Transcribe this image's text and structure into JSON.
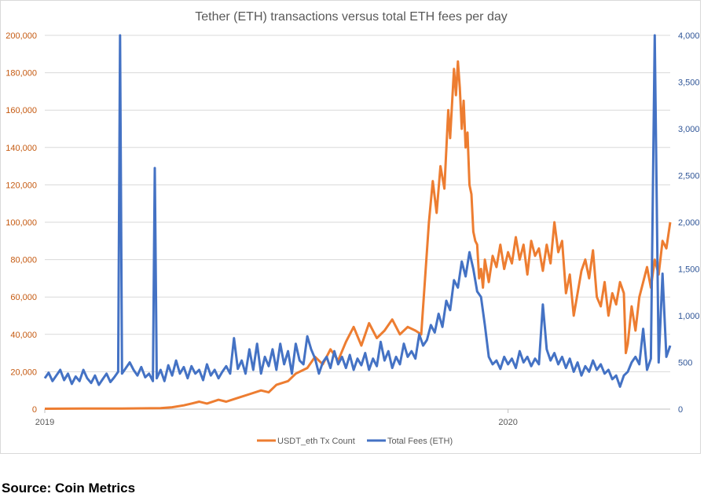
{
  "chart_data": {
    "type": "line",
    "title": "Tether (ETH) transactions versus total ETH fees per day",
    "left_axis": {
      "min": 0,
      "max": 200000,
      "ticks": [
        0,
        20000,
        40000,
        60000,
        80000,
        100000,
        120000,
        140000,
        160000,
        180000,
        200000
      ],
      "tick_labels": [
        "0",
        "20,000",
        "40,000",
        "60,000",
        "80,000",
        "100,000",
        "120,000",
        "140,000",
        "160,000",
        "180,000",
        "200,000"
      ]
    },
    "right_axis": {
      "min": 0,
      "max": 4000,
      "ticks": [
        0,
        500,
        1000,
        1500,
        2000,
        2500,
        3000,
        3500,
        4000
      ],
      "tick_labels": [
        "0",
        "500",
        "1,000",
        "1,500",
        "2,000",
        "2,500",
        "3,000",
        "3,500",
        "4,000"
      ]
    },
    "x_axis": {
      "range_months": [
        0,
        16.2
      ],
      "ticks": [
        {
          "month": 0,
          "label": "2019"
        },
        {
          "month": 12,
          "label": "2020"
        }
      ]
    },
    "gridlines": true,
    "legend_position": "bottom",
    "series": [
      {
        "name": "USDT_eth Tx Count",
        "axis": "left",
        "color": "#ed7d31",
        "points": [
          [
            0,
            200
          ],
          [
            0.5,
            250
          ],
          [
            1,
            280
          ],
          [
            1.5,
            300
          ],
          [
            2,
            330
          ],
          [
            2.5,
            400
          ],
          [
            3,
            500
          ],
          [
            3.3,
            1000
          ],
          [
            3.6,
            2000
          ],
          [
            3.8,
            3000
          ],
          [
            4,
            4000
          ],
          [
            4.2,
            3000
          ],
          [
            4.5,
            5000
          ],
          [
            4.7,
            4000
          ],
          [
            5,
            6000
          ],
          [
            5.3,
            8000
          ],
          [
            5.6,
            10000
          ],
          [
            5.8,
            9000
          ],
          [
            6,
            13000
          ],
          [
            6.3,
            15000
          ],
          [
            6.5,
            19000
          ],
          [
            6.8,
            22000
          ],
          [
            7,
            28000
          ],
          [
            7.2,
            24000
          ],
          [
            7.4,
            32000
          ],
          [
            7.6,
            26000
          ],
          [
            7.8,
            36000
          ],
          [
            8,
            44000
          ],
          [
            8.2,
            34000
          ],
          [
            8.4,
            46000
          ],
          [
            8.6,
            38000
          ],
          [
            8.8,
            42000
          ],
          [
            9,
            48000
          ],
          [
            9.2,
            40000
          ],
          [
            9.4,
            44000
          ],
          [
            9.6,
            42000
          ],
          [
            9.75,
            40000
          ],
          [
            9.85,
            70000
          ],
          [
            9.95,
            100000
          ],
          [
            10.05,
            122000
          ],
          [
            10.15,
            105000
          ],
          [
            10.25,
            130000
          ],
          [
            10.35,
            118000
          ],
          [
            10.45,
            160000
          ],
          [
            10.5,
            145000
          ],
          [
            10.6,
            182000
          ],
          [
            10.65,
            168000
          ],
          [
            10.7,
            186000
          ],
          [
            10.75,
            172000
          ],
          [
            10.8,
            150000
          ],
          [
            10.85,
            165000
          ],
          [
            10.9,
            140000
          ],
          [
            10.95,
            148000
          ],
          [
            11.0,
            120000
          ],
          [
            11.05,
            115000
          ],
          [
            11.1,
            95000
          ],
          [
            11.15,
            90000
          ],
          [
            11.2,
            88000
          ],
          [
            11.25,
            70000
          ],
          [
            11.3,
            75000
          ],
          [
            11.35,
            65000
          ],
          [
            11.4,
            80000
          ],
          [
            11.5,
            68000
          ],
          [
            11.6,
            82000
          ],
          [
            11.7,
            76000
          ],
          [
            11.8,
            88000
          ],
          [
            11.9,
            75000
          ],
          [
            12.0,
            84000
          ],
          [
            12.1,
            78000
          ],
          [
            12.2,
            92000
          ],
          [
            12.3,
            80000
          ],
          [
            12.4,
            88000
          ],
          [
            12.5,
            72000
          ],
          [
            12.6,
            90000
          ],
          [
            12.7,
            82000
          ],
          [
            12.8,
            86000
          ],
          [
            12.9,
            74000
          ],
          [
            13.0,
            88000
          ],
          [
            13.1,
            78000
          ],
          [
            13.2,
            100000
          ],
          [
            13.3,
            84000
          ],
          [
            13.4,
            90000
          ],
          [
            13.5,
            62000
          ],
          [
            13.6,
            72000
          ],
          [
            13.7,
            50000
          ],
          [
            13.8,
            62000
          ],
          [
            13.9,
            74000
          ],
          [
            14.0,
            80000
          ],
          [
            14.1,
            70000
          ],
          [
            14.2,
            85000
          ],
          [
            14.3,
            60000
          ],
          [
            14.4,
            55000
          ],
          [
            14.5,
            68000
          ],
          [
            14.6,
            50000
          ],
          [
            14.7,
            62000
          ],
          [
            14.8,
            56000
          ],
          [
            14.9,
            68000
          ],
          [
            15.0,
            62000
          ],
          [
            15.05,
            30000
          ],
          [
            15.1,
            35000
          ],
          [
            15.2,
            55000
          ],
          [
            15.3,
            42000
          ],
          [
            15.4,
            60000
          ],
          [
            15.5,
            68000
          ],
          [
            15.6,
            76000
          ],
          [
            15.7,
            65000
          ],
          [
            15.8,
            80000
          ],
          [
            15.9,
            72000
          ],
          [
            16.0,
            90000
          ],
          [
            16.1,
            86000
          ],
          [
            16.2,
            100000
          ]
        ]
      },
      {
        "name": "Total Fees (ETH)",
        "axis": "right",
        "color": "#4472c4",
        "points": [
          [
            0,
            330
          ],
          [
            0.1,
            390
          ],
          [
            0.2,
            300
          ],
          [
            0.3,
            360
          ],
          [
            0.4,
            420
          ],
          [
            0.5,
            310
          ],
          [
            0.6,
            380
          ],
          [
            0.7,
            270
          ],
          [
            0.8,
            350
          ],
          [
            0.9,
            300
          ],
          [
            1.0,
            420
          ],
          [
            1.1,
            330
          ],
          [
            1.2,
            280
          ],
          [
            1.3,
            360
          ],
          [
            1.4,
            260
          ],
          [
            1.5,
            320
          ],
          [
            1.6,
            380
          ],
          [
            1.7,
            290
          ],
          [
            1.8,
            340
          ],
          [
            1.9,
            400
          ],
          [
            1.95,
            4000
          ],
          [
            2.0,
            380
          ],
          [
            2.1,
            440
          ],
          [
            2.2,
            500
          ],
          [
            2.3,
            420
          ],
          [
            2.4,
            360
          ],
          [
            2.5,
            450
          ],
          [
            2.6,
            340
          ],
          [
            2.7,
            380
          ],
          [
            2.8,
            300
          ],
          [
            2.85,
            2580
          ],
          [
            2.9,
            330
          ],
          [
            3.0,
            420
          ],
          [
            3.1,
            300
          ],
          [
            3.2,
            470
          ],
          [
            3.3,
            360
          ],
          [
            3.4,
            520
          ],
          [
            3.5,
            380
          ],
          [
            3.6,
            450
          ],
          [
            3.7,
            330
          ],
          [
            3.8,
            460
          ],
          [
            3.9,
            380
          ],
          [
            4.0,
            420
          ],
          [
            4.1,
            310
          ],
          [
            4.2,
            480
          ],
          [
            4.3,
            360
          ],
          [
            4.4,
            420
          ],
          [
            4.5,
            330
          ],
          [
            4.6,
            400
          ],
          [
            4.7,
            460
          ],
          [
            4.8,
            380
          ],
          [
            4.9,
            760
          ],
          [
            5.0,
            430
          ],
          [
            5.1,
            520
          ],
          [
            5.2,
            380
          ],
          [
            5.3,
            640
          ],
          [
            5.4,
            420
          ],
          [
            5.5,
            700
          ],
          [
            5.6,
            380
          ],
          [
            5.7,
            560
          ],
          [
            5.8,
            460
          ],
          [
            5.9,
            640
          ],
          [
            6.0,
            420
          ],
          [
            6.1,
            700
          ],
          [
            6.2,
            480
          ],
          [
            6.3,
            620
          ],
          [
            6.4,
            380
          ],
          [
            6.5,
            700
          ],
          [
            6.6,
            520
          ],
          [
            6.7,
            480
          ],
          [
            6.8,
            780
          ],
          [
            6.9,
            640
          ],
          [
            7.0,
            540
          ],
          [
            7.1,
            380
          ],
          [
            7.2,
            500
          ],
          [
            7.3,
            560
          ],
          [
            7.4,
            440
          ],
          [
            7.5,
            620
          ],
          [
            7.6,
            480
          ],
          [
            7.7,
            560
          ],
          [
            7.8,
            440
          ],
          [
            7.9,
            580
          ],
          [
            8.0,
            420
          ],
          [
            8.1,
            540
          ],
          [
            8.2,
            470
          ],
          [
            8.3,
            600
          ],
          [
            8.4,
            420
          ],
          [
            8.5,
            540
          ],
          [
            8.6,
            460
          ],
          [
            8.7,
            720
          ],
          [
            8.8,
            520
          ],
          [
            8.9,
            620
          ],
          [
            9.0,
            440
          ],
          [
            9.1,
            560
          ],
          [
            9.2,
            480
          ],
          [
            9.3,
            700
          ],
          [
            9.4,
            560
          ],
          [
            9.5,
            620
          ],
          [
            9.6,
            540
          ],
          [
            9.7,
            800
          ],
          [
            9.8,
            680
          ],
          [
            9.9,
            740
          ],
          [
            10.0,
            900
          ],
          [
            10.1,
            820
          ],
          [
            10.2,
            1020
          ],
          [
            10.3,
            880
          ],
          [
            10.4,
            1160
          ],
          [
            10.5,
            1060
          ],
          [
            10.6,
            1380
          ],
          [
            10.7,
            1300
          ],
          [
            10.8,
            1580
          ],
          [
            10.9,
            1420
          ],
          [
            11.0,
            1680
          ],
          [
            11.1,
            1500
          ],
          [
            11.2,
            1260
          ],
          [
            11.3,
            1200
          ],
          [
            11.4,
            900
          ],
          [
            11.5,
            560
          ],
          [
            11.6,
            480
          ],
          [
            11.7,
            520
          ],
          [
            11.8,
            430
          ],
          [
            11.9,
            560
          ],
          [
            12.0,
            480
          ],
          [
            12.1,
            540
          ],
          [
            12.2,
            440
          ],
          [
            12.3,
            620
          ],
          [
            12.4,
            500
          ],
          [
            12.5,
            560
          ],
          [
            12.6,
            460
          ],
          [
            12.7,
            540
          ],
          [
            12.8,
            480
          ],
          [
            12.9,
            1120
          ],
          [
            13.0,
            640
          ],
          [
            13.1,
            520
          ],
          [
            13.2,
            600
          ],
          [
            13.3,
            480
          ],
          [
            13.4,
            560
          ],
          [
            13.5,
            440
          ],
          [
            13.6,
            540
          ],
          [
            13.7,
            400
          ],
          [
            13.8,
            500
          ],
          [
            13.9,
            360
          ],
          [
            14.0,
            460
          ],
          [
            14.1,
            400
          ],
          [
            14.2,
            520
          ],
          [
            14.3,
            420
          ],
          [
            14.4,
            480
          ],
          [
            14.5,
            380
          ],
          [
            14.6,
            420
          ],
          [
            14.7,
            320
          ],
          [
            14.8,
            360
          ],
          [
            14.9,
            240
          ],
          [
            15.0,
            360
          ],
          [
            15.1,
            400
          ],
          [
            15.2,
            500
          ],
          [
            15.3,
            560
          ],
          [
            15.4,
            480
          ],
          [
            15.5,
            860
          ],
          [
            15.6,
            420
          ],
          [
            15.7,
            540
          ],
          [
            15.8,
            4000
          ],
          [
            15.9,
            500
          ],
          [
            16.0,
            1450
          ],
          [
            16.1,
            560
          ],
          [
            16.2,
            680
          ]
        ]
      }
    ]
  },
  "source": "Source: Coin Metrics"
}
